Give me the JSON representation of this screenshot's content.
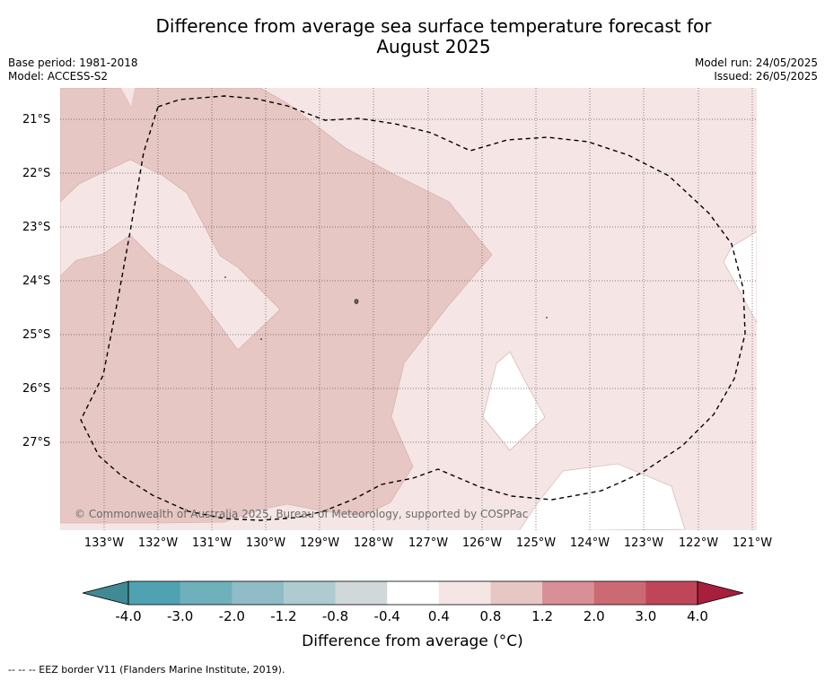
{
  "title_line1": "Difference from average sea surface temperature forecast for",
  "title_line2": "August 2025",
  "meta_left": {
    "base_period": "Base period: 1981-2018",
    "model": "Model: ACCESS-S2"
  },
  "meta_right": {
    "model_run": "Model run: 24/05/2025",
    "issued": "Issued: 26/05/2025"
  },
  "map": {
    "lat_labels": [
      "21°S",
      "22°S",
      "23°S",
      "24°S",
      "25°S",
      "26°S",
      "27°S"
    ],
    "lon_labels": [
      "133°W",
      "132°W",
      "131°W",
      "130°W",
      "129°W",
      "128°W",
      "127°W",
      "126°W",
      "125°W",
      "124°W",
      "123°W",
      "122°W",
      "121°W"
    ],
    "copyright": "© Commonwealth of Australia 2025, Bureau of Meteorology, supported by COSPPac",
    "region_colors": {
      "warm_light": "#f5e6e5",
      "warm_mid": "#e7c7c3",
      "neutral": "#ffffff"
    }
  },
  "colorbar": {
    "ticks": [
      "-4.0",
      "-3.0",
      "-2.0",
      "-1.2",
      "-0.8",
      "-0.4",
      "0.4",
      "0.8",
      "1.2",
      "2.0",
      "3.0",
      "4.0"
    ],
    "colors": [
      "#4ea2b1",
      "#6eb0bc",
      "#8fbcc6",
      "#aecbd0",
      "#d0d8da",
      "#ffffff",
      "#f5e6e5",
      "#e7c7c3",
      "#d98f96",
      "#cc6a74",
      "#bf4658"
    ],
    "low_extend_color": "#3f8a95",
    "high_extend_color": "#a81e3d",
    "label": "Difference from average (°C)"
  },
  "footnote": "--  --  -- EEZ border V11 (Flanders Marine Institute, 2019)."
}
